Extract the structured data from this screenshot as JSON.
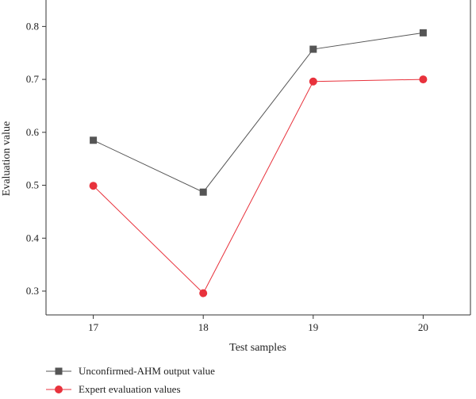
{
  "chart_data": {
    "type": "line",
    "x": [
      17,
      18,
      19,
      20
    ],
    "xticks": [
      "17",
      "18",
      "19",
      "20"
    ],
    "yticks": [
      "0.3",
      "0.4",
      "0.5",
      "0.6",
      "0.7",
      "0.8"
    ],
    "xlabel": "Test samples",
    "ylabel": "Evaluation value",
    "xlim": [
      16.57,
      20.43
    ],
    "ylim": [
      0.255,
      0.85
    ],
    "grid": false,
    "legend_position": "bottom-left",
    "series": [
      {
        "name": "Unconfirmed-AHM output value",
        "values": [
          0.585,
          0.487,
          0.757,
          0.788
        ],
        "color": "#555555",
        "marker": "square"
      },
      {
        "name": "Expert evaluation values",
        "values": [
          0.499,
          0.296,
          0.696,
          0.7
        ],
        "color": "#e8323c",
        "marker": "circle"
      }
    ]
  }
}
